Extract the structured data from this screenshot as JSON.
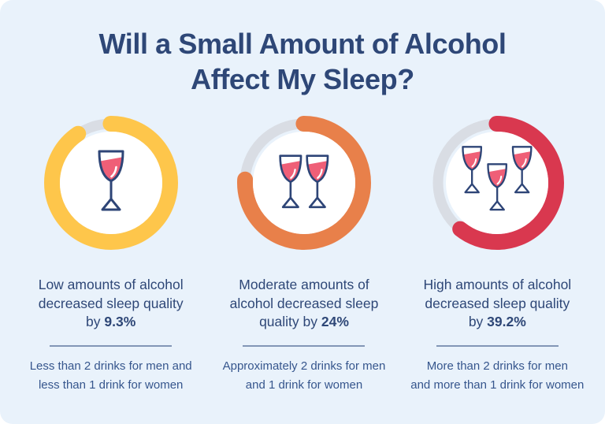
{
  "title": {
    "line1": "Will a Small Amount of Alcohol",
    "line2": "Affect My Sleep?"
  },
  "colors": {
    "background": "#E9F2FB",
    "heading": "#2E4777",
    "caption_text": "#2E4777",
    "subtext": "#36568D",
    "divider": "#8296B6",
    "ring_track": "#D9DDE4",
    "ring_low": "#FEC64B",
    "ring_moderate": "#E8804A",
    "ring_high": "#D9384F",
    "wine_fill": "#EF5F77",
    "glass_outline": "#2E4577"
  },
  "rings": [
    {
      "id": "low",
      "percent": 9.3,
      "color": "#FEC64B",
      "track_color": "#D9DDE4",
      "glasses": 1
    },
    {
      "id": "moderate",
      "percent": 24,
      "color": "#E8804A",
      "track_color": "#D9DDE4",
      "glasses": 2
    },
    {
      "id": "high",
      "percent": 39.2,
      "color": "#D9384F",
      "track_color": "#D9DDE4",
      "glasses": 3
    }
  ],
  "columns": [
    {
      "caption_line1": "Low amounts of alcohol",
      "caption_line2": "decreased sleep quality",
      "caption_line3_prefix": "by ",
      "stat": "9.3%",
      "subtext_line1": "Less than 2 drinks for men and",
      "subtext_line2": "less than 1 drink for women"
    },
    {
      "caption_line1": "Moderate amounts of",
      "caption_line2": "alcohol decreased sleep",
      "caption_line3_prefix": "quality by ",
      "stat": "24%",
      "subtext_line1": "Approximately 2 drinks for men",
      "subtext_line2": "and 1 drink for women"
    },
    {
      "caption_line1": "High amounts of alcohol",
      "caption_line2": "decreased sleep quality",
      "caption_line3_prefix": "by ",
      "stat": "39.2%",
      "subtext_line1": "More than 2 drinks for men",
      "subtext_line2": "and more than 1 drink for women"
    }
  ],
  "chart_data": {
    "type": "donut-progress",
    "title": "Will a Small Amount of Alcohol Affect My Sleep?",
    "value_range": [
      0,
      100
    ],
    "track_color": "#D9DDE4",
    "series": [
      {
        "category": "Low amounts of alcohol",
        "sleep_quality_decrease_percent": 9.3,
        "definition": "Less than 2 drinks for men and less than 1 drink for women",
        "ring_color": "#FEC64B",
        "glasses_icon_count": 1
      },
      {
        "category": "Moderate amounts of alcohol",
        "sleep_quality_decrease_percent": 24,
        "definition": "Approximately 2 drinks for men and 1 drink for women",
        "ring_color": "#E8804A",
        "glasses_icon_count": 2
      },
      {
        "category": "High amounts of alcohol",
        "sleep_quality_decrease_percent": 39.2,
        "definition": "More than 2 drinks for men and more than 1 drink for women",
        "ring_color": "#D9384F",
        "glasses_icon_count": 3
      }
    ]
  }
}
